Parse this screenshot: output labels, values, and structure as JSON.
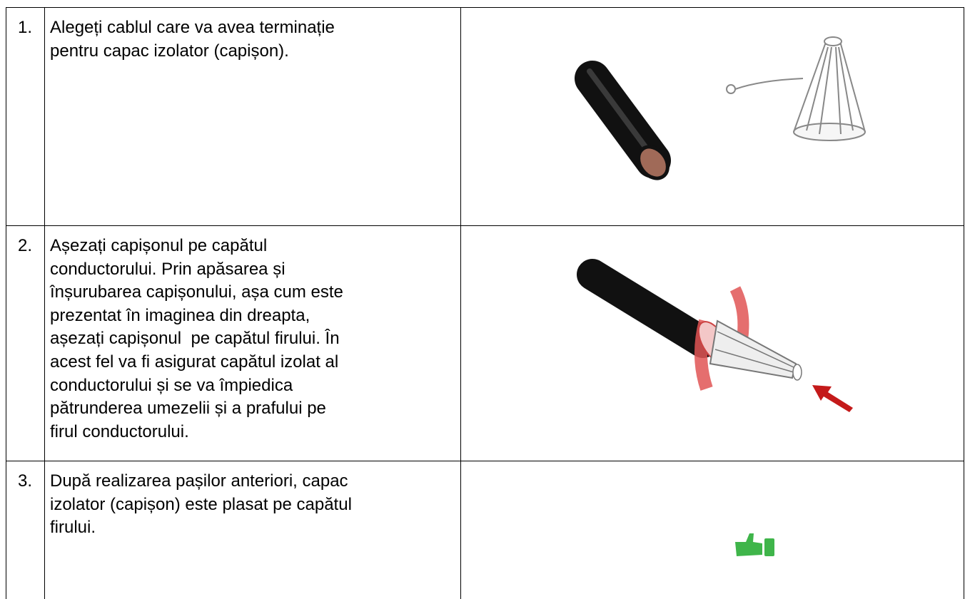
{
  "table": {
    "rows": [
      {
        "number": "1.",
        "lines": [
          "Alegeți cablul care va avea terminație",
          "pentru capac izolator (capișon)."
        ]
      },
      {
        "number": "2.",
        "lines": [
          "Așezați capișonul pe capătul",
          "conductorului. Prin apăsarea și",
          "înșurubarea capișonului, așa cum este",
          "prezentat în imaginea din dreapta,",
          "așezați capișonul  pe capătul firului. În",
          "acest fel va fi asigurat capătul izolat al",
          "conductorului și se va împiedica",
          "pătrunderea umezelii și a prafului pe",
          "firul conductorului."
        ]
      },
      {
        "number": "3.",
        "lines": [
          "După realizarea pașilor anteriori, capac",
          "izolator (capișon) este plasat pe capătul",
          "firului."
        ]
      }
    ]
  }
}
